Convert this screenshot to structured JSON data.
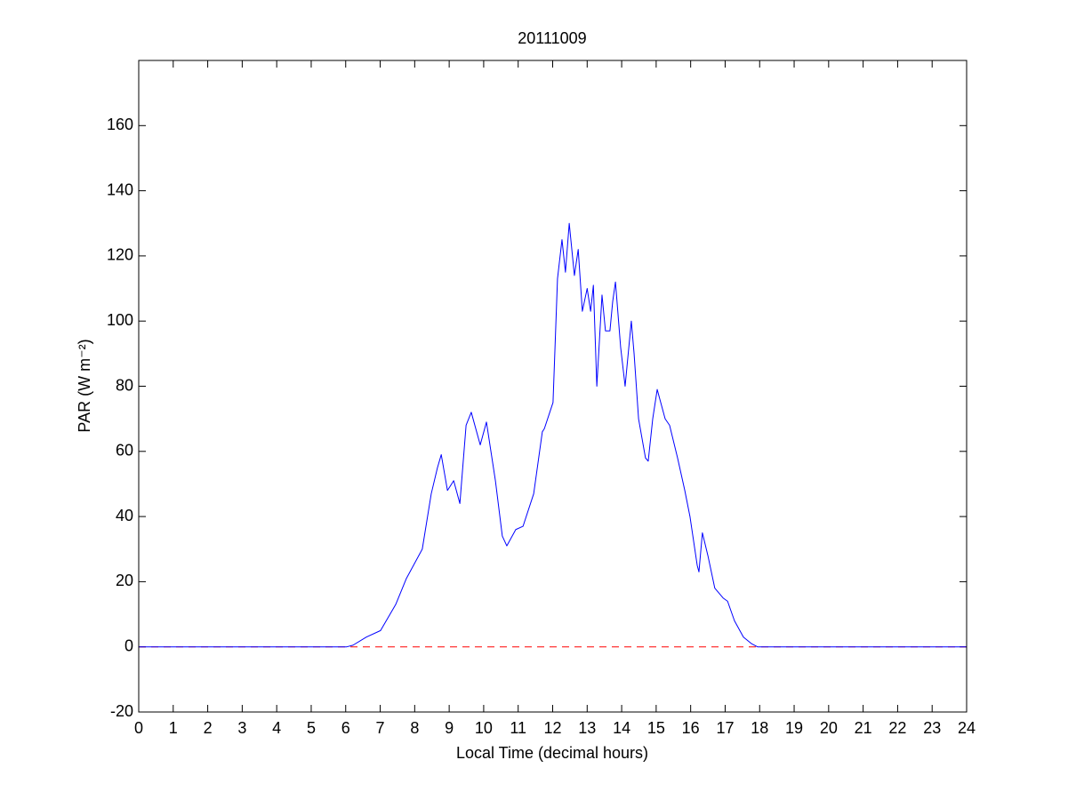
{
  "chart_data": {
    "type": "line",
    "title": "20111009",
    "xlabel": "Local Time (decimal hours)",
    "ylabel": "PAR (W m⁻²)",
    "xlim": [
      0,
      24
    ],
    "xticks": [
      0,
      1,
      2,
      3,
      4,
      5,
      6,
      7,
      8,
      9,
      10,
      11,
      12,
      13,
      14,
      15,
      16,
      17,
      18,
      19,
      20,
      21,
      22,
      23,
      24
    ],
    "ylim": [
      -20,
      180
    ],
    "yticks": [
      -20,
      0,
      20,
      40,
      60,
      80,
      100,
      120,
      140,
      160
    ],
    "grid": false,
    "reference_line": {
      "value": 0,
      "color": "#ff0000",
      "style": "dashed"
    },
    "series": [
      {
        "color": "#0000ff",
        "x": [
          0,
          6.03,
          6.21,
          6.6,
          7.01,
          7.45,
          7.76,
          8.22,
          8.48,
          8.66,
          8.77,
          8.95,
          9.13,
          9.31,
          9.49,
          9.64,
          9.9,
          10.08,
          10.34,
          10.54,
          10.67,
          10.93,
          11.14,
          11.45,
          11.7,
          11.76,
          12.01,
          12.14,
          12.27,
          12.37,
          12.48,
          12.63,
          12.74,
          12.86,
          13.0,
          13.1,
          13.18,
          13.28,
          13.43,
          13.53,
          13.66,
          13.74,
          13.82,
          13.97,
          14.1,
          14.28,
          14.36,
          14.49,
          14.69,
          14.77,
          14.9,
          15.03,
          15.26,
          15.39,
          15.62,
          15.83,
          15.98,
          16.19,
          16.24,
          16.34,
          16.5,
          16.7,
          16.94,
          17.07,
          17.27,
          17.53,
          17.76,
          17.94,
          24
        ],
        "values": [
          0,
          0,
          0.5,
          3,
          5,
          13,
          21,
          30,
          47,
          55,
          59,
          48,
          51,
          44,
          68,
          72,
          62,
          69,
          51,
          34,
          31,
          36,
          37,
          47,
          66,
          67,
          75,
          113,
          125,
          115,
          130,
          114,
          122,
          103,
          110,
          103,
          111,
          80,
          108,
          97,
          97,
          106,
          112,
          92,
          80,
          100,
          90,
          70,
          58,
          57,
          70,
          79,
          70,
          68,
          58,
          48,
          40,
          25,
          23,
          35,
          28,
          18,
          15,
          14,
          8,
          3,
          1,
          0,
          0
        ]
      }
    ]
  }
}
